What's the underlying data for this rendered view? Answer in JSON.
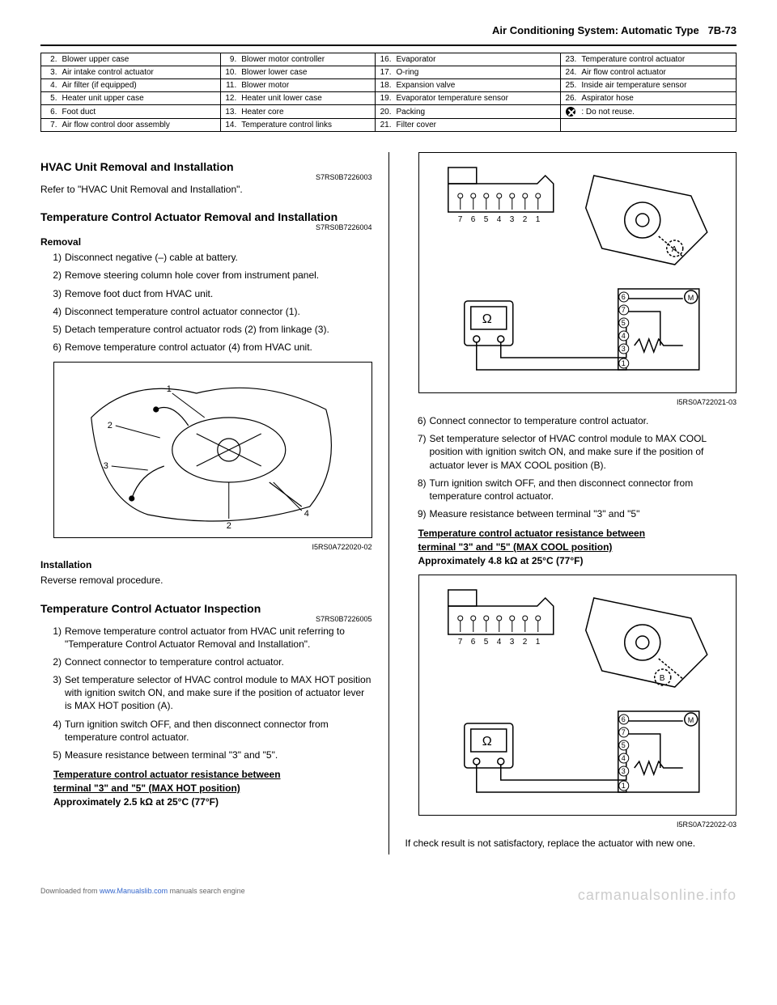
{
  "header": {
    "title": "Air Conditioning System: Automatic Type",
    "page": "7B-73"
  },
  "parts_table": {
    "rows": [
      [
        [
          "2.",
          "Blower upper case"
        ],
        [
          "9.",
          "Blower motor controller"
        ],
        [
          "16.",
          "Evaporator"
        ],
        [
          "23.",
          "Temperature control actuator"
        ]
      ],
      [
        [
          "3.",
          "Air intake control actuator"
        ],
        [
          "10.",
          "Blower lower case"
        ],
        [
          "17.",
          "O-ring"
        ],
        [
          "24.",
          "Air flow control actuator"
        ]
      ],
      [
        [
          "4.",
          "Air filter (if equipped)"
        ],
        [
          "11.",
          "Blower motor"
        ],
        [
          "18.",
          "Expansion valve"
        ],
        [
          "25.",
          "Inside air temperature sensor"
        ]
      ],
      [
        [
          "5.",
          "Heater unit upper case"
        ],
        [
          "12.",
          "Heater unit lower case"
        ],
        [
          "19.",
          "Evaporator temperature sensor"
        ],
        [
          "26.",
          "Aspirator hose"
        ]
      ],
      [
        [
          "6.",
          "Foot duct"
        ],
        [
          "13.",
          "Heater core"
        ],
        [
          "20.",
          "Packing"
        ],
        [
          "ICON",
          "Do not reuse."
        ]
      ],
      [
        [
          "7.",
          "Air flow control door assembly"
        ],
        [
          "14.",
          "Temperature control links"
        ],
        [
          "21.",
          "Filter cover"
        ],
        [
          "",
          ""
        ]
      ]
    ]
  },
  "left": {
    "s1_title": "HVAC Unit Removal and Installation",
    "s1_code": "S7RS0B7226003",
    "s1_text": "Refer to \"HVAC Unit Removal and Installation\".",
    "s2_title": "Temperature Control Actuator Removal and Installation",
    "s2_code": "S7RS0B7226004",
    "removal_label": "Removal",
    "removal_steps": [
      "Disconnect negative (–) cable at battery.",
      "Remove steering column hole cover from instrument panel.",
      "Remove foot duct from HVAC unit.",
      "Disconnect temperature control actuator connector (1).",
      "Detach temperature control actuator rods (2) from linkage (3).",
      "Remove temperature control actuator (4) from HVAC unit."
    ],
    "fig1_caption": "I5RS0A722020-02",
    "install_label": "Installation",
    "install_text": "Reverse removal procedure.",
    "s3_title": "Temperature Control Actuator Inspection",
    "s3_code": "S7RS0B7226005",
    "inspect_steps": [
      "Remove temperature control actuator from HVAC unit referring to \"Temperature Control Actuator Removal and Installation\".",
      "Connect connector to temperature control actuator.",
      "Set temperature selector of HVAC control module to MAX HOT position with ignition switch ON, and make sure if the position of actuator lever is MAX HOT position (A).",
      "Turn ignition switch OFF, and then disconnect connector from temperature control actuator.",
      "Measure resistance between terminal \"3\" and \"5\"."
    ],
    "spec1_u1": "Temperature control actuator resistance between ",
    "spec1_u2": "terminal \"3\" and \"5\" (MAX HOT position)",
    "spec1_b": "Approximately 2.5 kΩ at 25°C (77°F)"
  },
  "right": {
    "fig2_caption": "I5RS0A722021-03",
    "steps6_9": [
      "Connect connector to temperature control actuator.",
      "Set temperature selector of HVAC control module to MAX COOL position with ignition switch ON, and make sure if the position of actuator lever is MAX COOL position (B).",
      "Turn ignition switch OFF, and then disconnect connector from temperature control actuator.",
      "Measure resistance between terminal \"3\" and \"5\""
    ],
    "spec2_u1": "Temperature control actuator resistance between ",
    "spec2_u2": "terminal \"3\" and \"5\" (MAX COOL position)",
    "spec2_b": "Approximately 4.8 kΩ at 25°C (77°F)",
    "fig3_caption": "I5RS0A722022-03",
    "tail": "If check result is not satisfactory, replace the actuator with new one."
  },
  "connector_labels": [
    "7",
    "6",
    "5",
    "4",
    "3",
    "2",
    "1"
  ],
  "footer": {
    "dl": "Downloaded from ",
    "dl_link": "www.Manualslib.com",
    "dl_tail": " manuals search engine",
    "wm": "carmanualsonline.info"
  },
  "fig_labels": {
    "l1": "1",
    "l2": "2",
    "l3": "3",
    "l4": "4",
    "lA": "A",
    "lB": "B"
  },
  "circuit_labels": [
    "6",
    "7",
    "5",
    "4",
    "3",
    "1"
  ]
}
